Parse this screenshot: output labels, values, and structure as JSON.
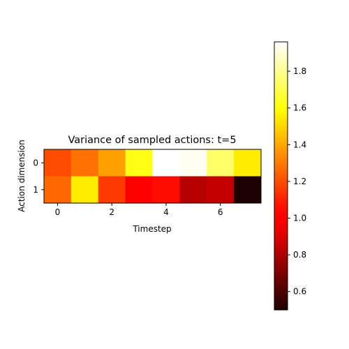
{
  "chart_data": {
    "type": "heatmap",
    "title": "Variance of sampled actions: t=5",
    "xlabel": "Timestep",
    "ylabel": "Action dimension",
    "x_ticks": [
      "0",
      "2",
      "4",
      "6"
    ],
    "x_tick_values": [
      0,
      2,
      4,
      6
    ],
    "y_ticks": [
      "0",
      "1"
    ],
    "y_tick_values": [
      0,
      1
    ],
    "rows": [
      0,
      1
    ],
    "columns": [
      0,
      1,
      2,
      3,
      4,
      5,
      6,
      7
    ],
    "values": [
      [
        1.2,
        1.28,
        1.38,
        1.62,
        1.96,
        1.94,
        1.74,
        1.55
      ],
      [
        1.26,
        1.55,
        1.16,
        0.98,
        1.06,
        0.82,
        0.85,
        0.5
      ]
    ],
    "colormap": "hot",
    "vmin": 0.5,
    "vmax": 1.96,
    "colorbar_ticks": [
      "0.6",
      "0.8",
      "1.0",
      "1.2",
      "1.4",
      "1.6",
      "1.8"
    ],
    "colorbar_tick_values": [
      0.6,
      0.8,
      1.0,
      1.2,
      1.4,
      1.6,
      1.8
    ],
    "grid": false
  }
}
